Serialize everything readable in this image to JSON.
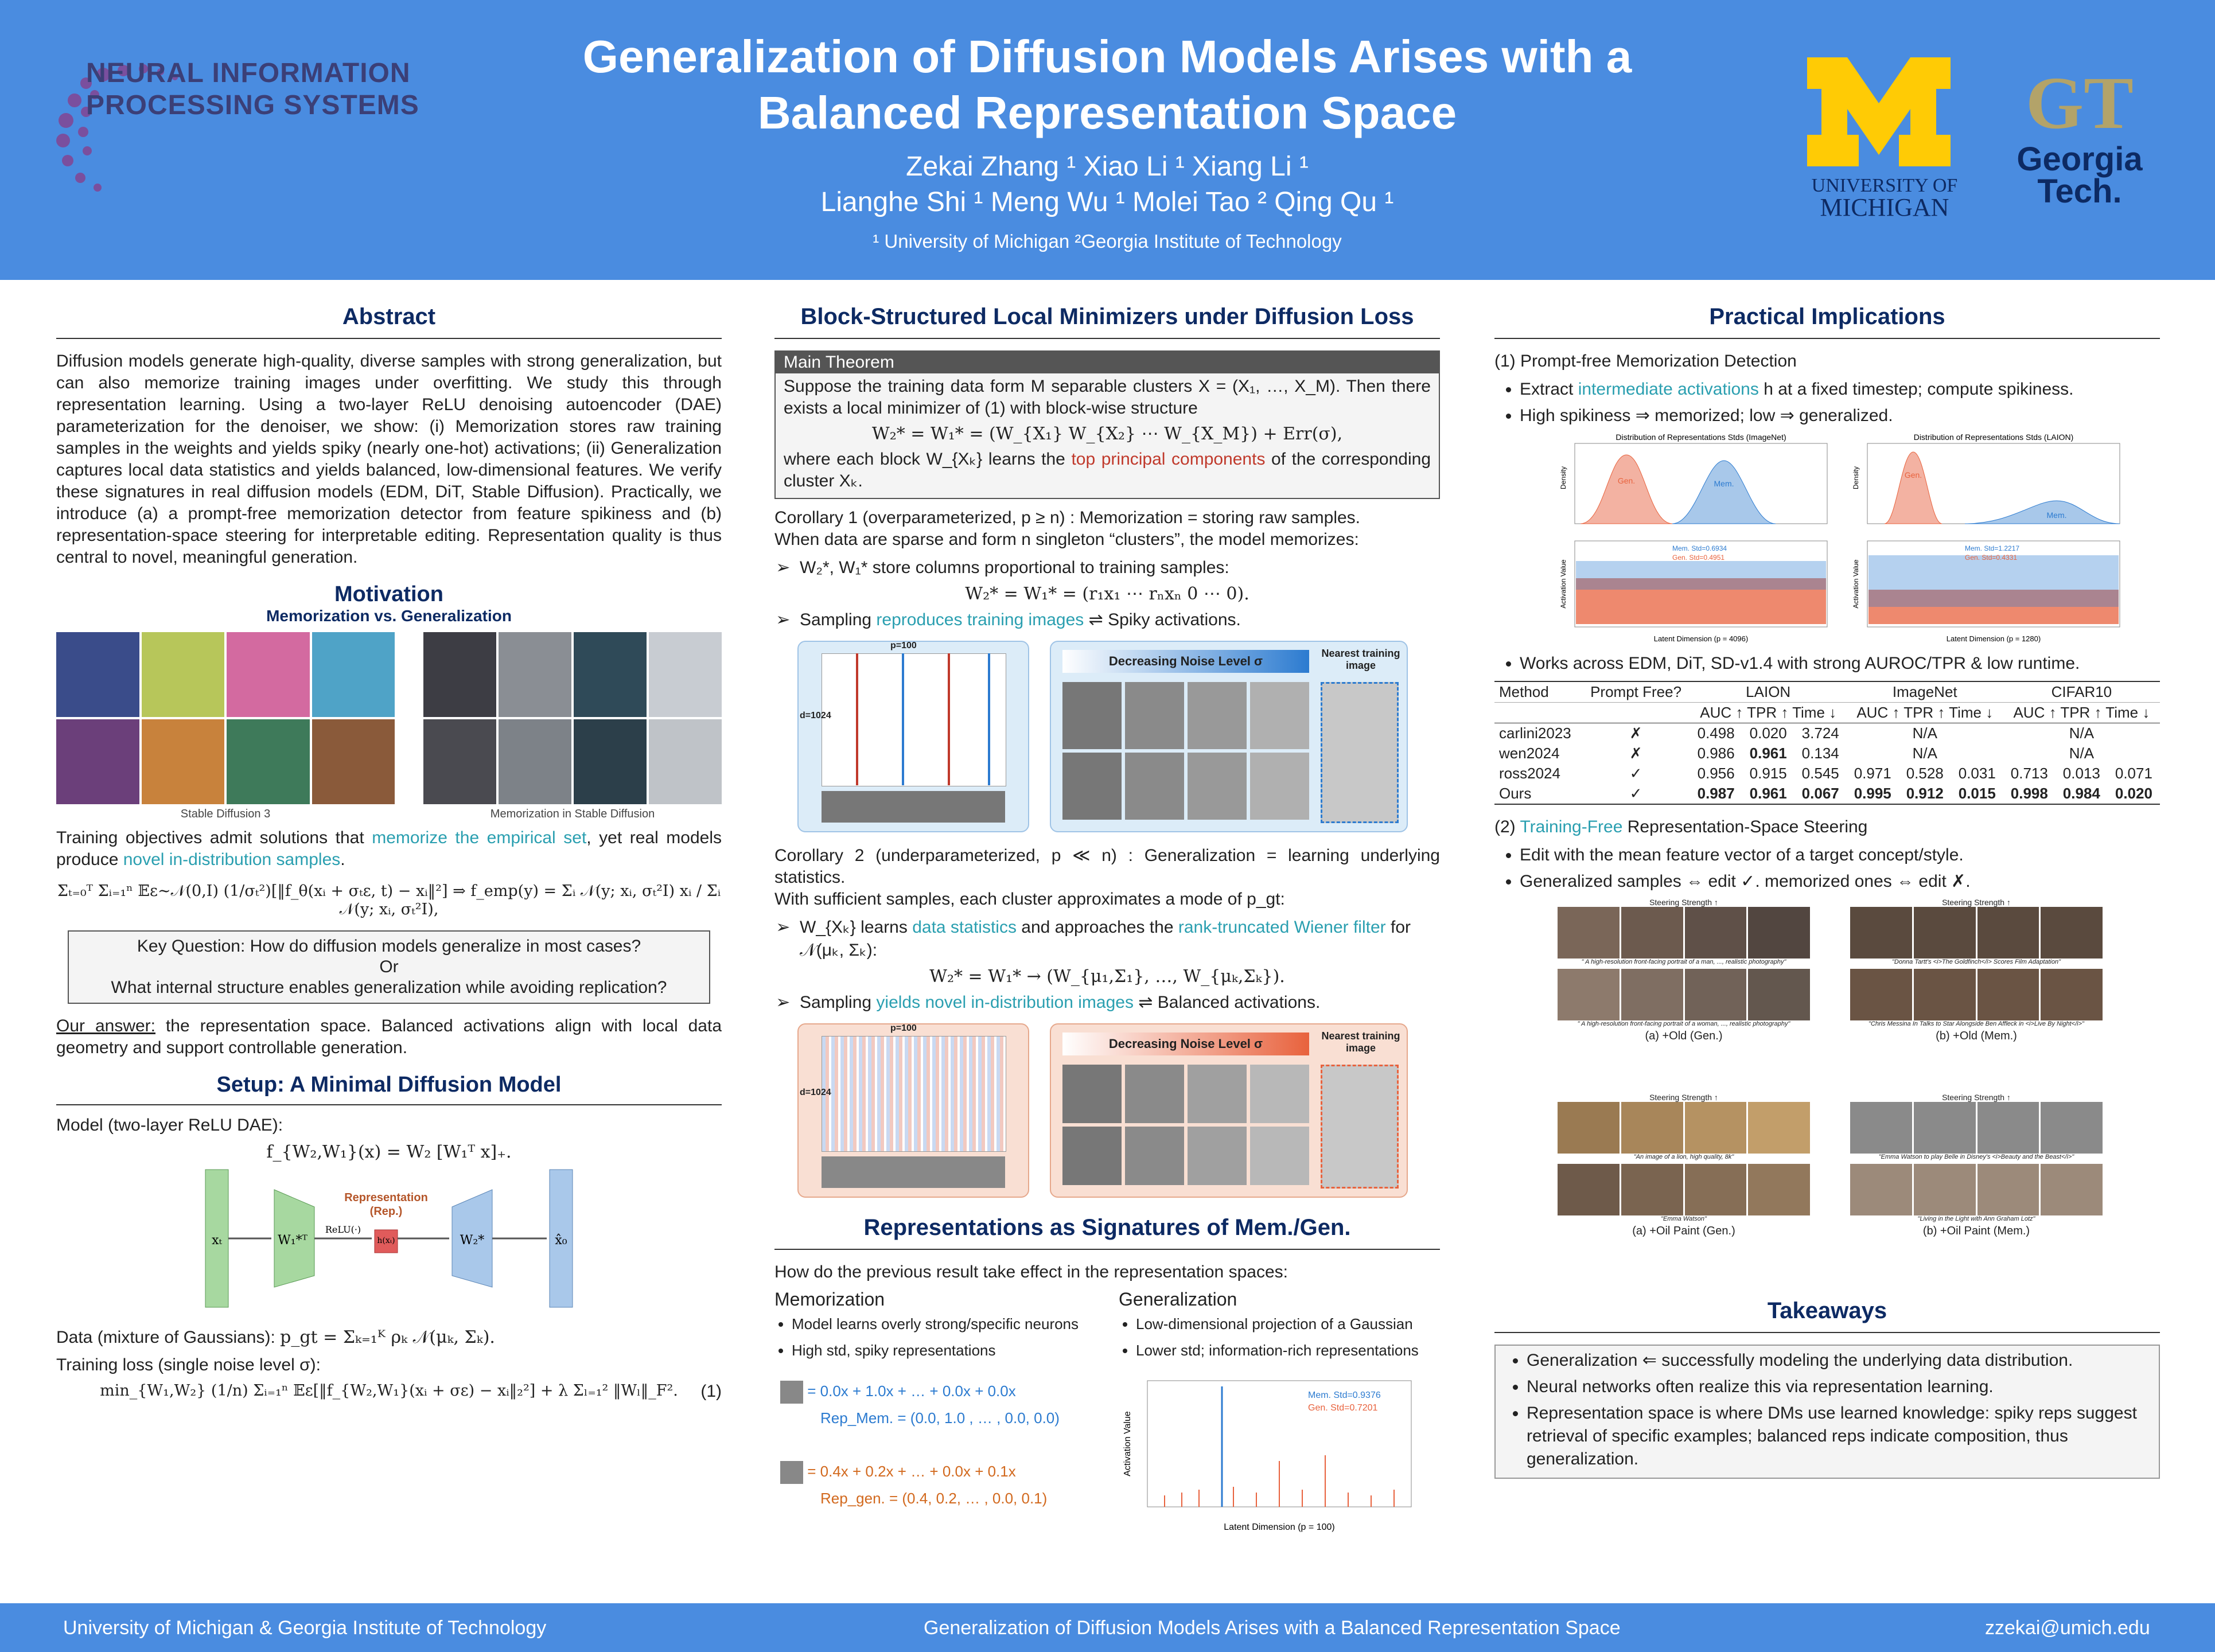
{
  "header": {
    "title_line1": "Generalization of Diffusion Models Arises with a",
    "title_line2": "Balanced Representation Space",
    "authors_line1": "Zekai Zhang ¹    Xiao Li ¹    Xiang Li ¹",
    "authors_line2": "Lianghe Shi ¹    Meng Wu ¹    Molei Tao ²    Qing Qu ¹",
    "affiliations": "¹ University of Michigan      ²Georgia Institute of Technology",
    "neurips_line1": "NEURAL INFORMATION",
    "neurips_line2": "PROCESSING SYSTEMS",
    "um_line1": "UNIVERSITY OF",
    "um_line2": "MICHIGAN",
    "gt_line1": "Georgia",
    "gt_line2": "Tech."
  },
  "abstract": {
    "title": "Abstract",
    "text": "Diffusion models generate high-quality, diverse samples with strong generalization, but can also memorize training images under overfitting. We study this through representation learning. Using a two-layer ReLU denoising autoencoder (DAE) parameterization for the denoiser, we show: (i) Memorization stores raw training samples in the weights and yields spiky (nearly one-hot) activations; (ii) Generalization captures local data statistics and yields balanced, low-dimensional features. We verify these signatures in real diffusion models (EDM, DiT, Stable Diffusion). Practically, we introduce (a) a prompt-free memorization detector from feature spikiness and (b) representation-space steering for interpretable editing. Representation quality is thus central to novel, meaningful generation."
  },
  "motivation": {
    "title": "Motivation",
    "subtitle": "Memorization vs. Generalization",
    "caption_left": "Stable Diffusion 3",
    "caption_right": "Memorization in Stable Diffusion",
    "text_pre": "Training objectives admit solutions that ",
    "text_hl": "memorize the empirical set",
    "text_mid": ", yet real models produce ",
    "text_hl2": "novel in-distribution samples",
    "text_end": ".",
    "equation": "Σₜ₌₀ᵀ Σᵢ₌₁ⁿ 𝔼ε∼𝒩(0,I) (1/σₜ²)[‖f_θ(xᵢ + σₜε, t) − xᵢ‖²]  ⇒  f_emp(y) = Σᵢ 𝒩(y; xᵢ, σₜ²I) xᵢ / Σᵢ 𝒩(y; xᵢ, σₜ²I),",
    "key_q1": "Key Question:  How do diffusion models generalize in most cases?",
    "key_or": "Or",
    "key_q2": "What internal structure enables generalization while avoiding replication?",
    "answer_label": "Our answer:",
    "answer_text": " the representation space.  Balanced activations align with local data geometry and support controllable generation."
  },
  "setup": {
    "title": "Setup: A Minimal Diffusion Model",
    "model_label": "Model (two-layer ReLU DAE):",
    "model_eq": "f_{W₂,W₁}(x)  =  W₂ [W₁ᵀ x]₊.",
    "rep_label": "Representation",
    "rep_sub": "(Rep.)",
    "relu": "ReLU(·)",
    "node_in": "xₜ",
    "node_w1": "W₁*ᵀ",
    "node_h": "h(xₜ)",
    "node_w2": "W₂*",
    "node_out": "x̂₀",
    "data_label": "Data (mixture of Gaussians):",
    "data_eq": "p_gt  =  Σₖ₌₁ᴷ ρₖ 𝒩(μₖ, Σₖ).",
    "loss_label": "Training loss (single noise level σ):",
    "loss_eq": "min_{W₁,W₂} (1/n) Σᵢ₌₁ⁿ 𝔼ε[‖f_{W₂,W₁}(xᵢ + σε) − xᵢ‖₂²] + λ Σₗ₌₁² ‖Wₗ‖_F².",
    "loss_num": "(1)"
  },
  "block": {
    "title": "Block-Structured Local Minimizers under Diffusion Loss",
    "theorem_head": "Main Theorem",
    "theorem_1": "Suppose the training data form M separable clusters X = (X₁, …, X_M). Then there exists a local minimizer of (1) with block-wise structure",
    "theorem_eq": "W₂* = W₁* = (W_{X₁} W_{X₂} ⋯ W_{X_M}) + Err(σ),",
    "theorem_2a": "where each block W_{Xₖ} learns the ",
    "theorem_2hl": "top principal components",
    "theorem_2b": " of the corresponding cluster Xₖ.",
    "c1_title": "Corollary 1 (overparameterized, p ≥ n) :  Memorization = storing raw samples.",
    "c1_text": "When data are sparse and form n singleton “clusters”, the model memorizes:",
    "c1_b1": "W₂*, W₁* store columns proportional to training samples:",
    "c1_eq": "W₂* = W₁* = (r₁x₁ ⋯ rₙxₙ 0 ⋯ 0).",
    "c1_b2a": "Sampling ",
    "c1_b2hl": "reproduces training images",
    "c1_b2b": " ⇌ Spiky activations.",
    "fig_p": "p=100",
    "fig_d": "d=1024",
    "fig_noise": "Decreasing Noise Level σ",
    "fig_nearest": "Nearest training image",
    "c2_title": "Corollary 2 (underparameterized, p ≪ n) :  Generalization = learning underlying statistics.",
    "c2_text": "With sufficient samples, each cluster approximates a mode of p_gt:",
    "c2_b1a": "W_{Xₖ} learns ",
    "c2_b1hl": "data statistics",
    "c2_b1b": " and approaches the ",
    "c2_b1hl2": "rank-truncated Wiener filter",
    "c2_b1c": " for 𝒩(μₖ, Σₖ):",
    "c2_eq": "W₂* = W₁* → (W_{μ₁,Σ₁}, …, W_{μₖ,Σₖ}).",
    "c2_b2a": "Sampling ",
    "c2_b2hl": "yields novel in-distribution images",
    "c2_b2b": " ⇌ Balanced activations."
  },
  "signatures": {
    "title": "Representations as Signatures of Mem./Gen.",
    "intro": "How do the previous result take effect in the representation spaces:",
    "mem_head": "Memorization",
    "gen_head": "Generalization",
    "mem_items": [
      "Model learns overly strong/specific neurons",
      "High std, spiky representations"
    ],
    "gen_items": [
      "Low-dimensional projection of a Gaussian",
      "Lower std; information-rich representations"
    ],
    "mem_formula": "= 0.0x  + 1.0x  + … + 0.0x  + 0.0x",
    "mem_rep": "Rep_Mem. = (0.0, 1.0 , … , 0.0, 0.0)",
    "gen_formula": "= 0.4x  + 0.2x  + … + 0.0x  + 0.1x",
    "gen_rep": "Rep_gen. = (0.4, 0.2, … , 0.0, 0.1)",
    "chart_ylabel": "Activation Value",
    "chart_xlabel": "Latent Dimension (p = 100)",
    "legend_mem": "Mem. Std=0.9376",
    "legend_gen": "Gen. Std=0.7201"
  },
  "practical": {
    "title": "Practical Implications",
    "p1_title": "(1) Prompt-free Memorization Detection",
    "p1_b1a": "Extract ",
    "p1_b1hl": "intermediate activations",
    "p1_b1b": " h at a fixed timestep; compute spikiness.",
    "p1_b2": "High spikiness ⇒ memorized; low ⇒ generalized.",
    "hist1_title": "Distribution of Representations Stds (ImageNet)",
    "hist2_title": "Distribution of Representations Stds (LAION)",
    "hist_ylabel": "Density",
    "hist_gen": "Gen.",
    "hist_mem": "Mem.",
    "act1_mem": "Mem. Std=0.6934",
    "act1_gen": "Gen. Std=0.4951",
    "act2_mem": "Mem. Std=1.2217",
    "act2_gen": "Gen. Std=0.4331",
    "act1_xlabel": "Latent Dimension (p = 4096)",
    "act2_xlabel": "Latent Dimension (p = 1280)",
    "act_ylabel": "Activation Value",
    "p1_b3": "Works across EDM, DiT, SD-v1.4 with strong AUROC/TPR & low runtime.",
    "table_head": [
      "Method",
      "Prompt Free?",
      "LAION",
      "ImageNet",
      "CIFAR10"
    ],
    "table_sub": "AUC ↑ TPR ↑ Time ↓",
    "table_rows": [
      [
        "carlini2023",
        "✗",
        "0.498",
        "0.020",
        "3.724",
        "N/A",
        "",
        "",
        "N/A",
        "",
        ""
      ],
      [
        "wen2024",
        "✗",
        "0.986",
        "0.961",
        "0.134",
        "N/A",
        "",
        "",
        "N/A",
        "",
        ""
      ],
      [
        "ross2024",
        "✓",
        "0.956",
        "0.915",
        "0.545",
        "0.971",
        "0.528",
        "0.031",
        "0.713",
        "0.013",
        "0.071"
      ],
      [
        "Ours",
        "✓",
        "0.987",
        "0.961",
        "0.067",
        "0.995",
        "0.912",
        "0.015",
        "0.998",
        "0.984",
        "0.020"
      ]
    ],
    "p2_num": "(2) ",
    "p2_hl": "Training-Free",
    "p2_rest": " Representation-Space Steering",
    "p2_b1": "Edit with the mean feature vector of a target concept/style.",
    "p2_b2": "Generalized samples ⇔ edit ✓.    memorized ones ⇔ edit ✗.",
    "steer_label": "Steering Strength ↑",
    "cap_a1": "(a) +Old (Gen.)",
    "cap_b1": "(b) +Old (Mem.)",
    "cap_a2": "(a) +Oil Paint (Gen.)",
    "cap_b2": "(b) +Oil Paint (Mem.)",
    "prompt1": "\" A high-resolution front-facing portrait of a man, ..., realistic photography\"",
    "prompt2": "\" A high-resolution front-facing portrait of a woman, ..., realistic photography\"",
    "prompt3": "\"Donna Tartt's <i>The Goldfinch</i> Scores Film Adaptation\"",
    "prompt4": "\"Chris Messina In Talks to Star Alongside Ben Affleck in <i>Live By Night</i>\"",
    "prompt5": "\"An image of a lion, high quality, 8k\"",
    "prompt6": "\"Emma Watson\"",
    "prompt7": "\"Emma Watson to play Belle in Disney's <i>Beauty and the Beast</i>\"",
    "prompt8": "\"Living in the Light with Ann Graham Lotz\""
  },
  "takeaways": {
    "title": "Takeaways",
    "items": [
      "Generalization ⇐ successfully modeling the underlying data distribution.",
      "Neural networks often realize this via representation learning.",
      "Representation space is where DMs use learned knowledge: spiky reps suggest retrieval of specific examples; balanced reps indicate composition, thus generalization."
    ]
  },
  "footer": {
    "left": "University of Michigan & Georgia Institute of Technology",
    "center": "Generalization of Diffusion Models Arises with a Balanced Representation Space",
    "right": "zzekai@umich.edu"
  },
  "colors": {
    "header": "#4a8ce0",
    "title_blue": "#0d2a63",
    "teal": "#2a9fb0",
    "mem": "#2c7bd0",
    "gen": "#e8623d"
  }
}
